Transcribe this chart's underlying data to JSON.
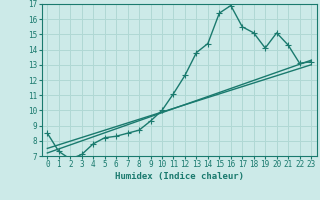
{
  "xlabel": "Humidex (Indice chaleur)",
  "ylabel": "",
  "background_color": "#cceae8",
  "grid_color": "#b0d8d4",
  "line_color": "#1a7a6e",
  "xlim": [
    -0.5,
    23.5
  ],
  "ylim": [
    7,
    17
  ],
  "xticks": [
    0,
    1,
    2,
    3,
    4,
    5,
    6,
    7,
    8,
    9,
    10,
    11,
    12,
    13,
    14,
    15,
    16,
    17,
    18,
    19,
    20,
    21,
    22,
    23
  ],
  "yticks": [
    7,
    8,
    9,
    10,
    11,
    12,
    13,
    14,
    15,
    16,
    17
  ],
  "line1_x": [
    0,
    1,
    2,
    3,
    4,
    5,
    6,
    7,
    8,
    9,
    10,
    11,
    12,
    13,
    14,
    15,
    16,
    17,
    18,
    19,
    20,
    21,
    22,
    23
  ],
  "line1_y": [
    8.5,
    7.3,
    6.8,
    7.1,
    7.8,
    8.2,
    8.3,
    8.5,
    8.7,
    9.3,
    10.0,
    11.1,
    12.3,
    13.8,
    14.4,
    16.4,
    16.9,
    15.5,
    15.1,
    14.1,
    15.1,
    14.3,
    13.1,
    13.2
  ],
  "line2_x": [
    0,
    23
  ],
  "line2_y": [
    7.2,
    13.3
  ],
  "line3_x": [
    0,
    23
  ],
  "line3_y": [
    7.5,
    13.0
  ],
  "marker_size": 2.5,
  "line_width": 1.0
}
